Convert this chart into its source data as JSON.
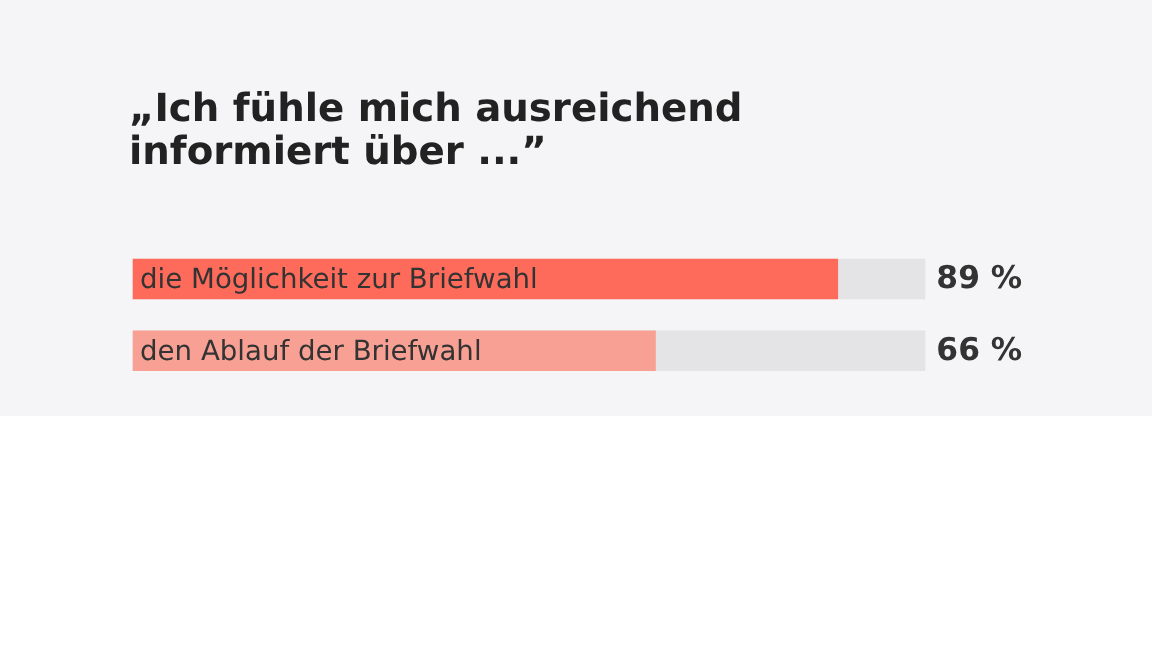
{
  "chart_data": {
    "type": "bar",
    "orientation": "horizontal",
    "title": "„Ich fühle mich ausreichend informiert über ...”",
    "categories": [
      "die Möglichkeit zur Briefwahl",
      "den Ablauf der Briefwahl"
    ],
    "values": [
      89,
      66
    ],
    "colors": [
      "#ff6b5a",
      "#f8a093"
    ],
    "value_labels": [
      "89 %",
      "66 %"
    ],
    "xlim": [
      0,
      100
    ],
    "tick_labels": false
  }
}
